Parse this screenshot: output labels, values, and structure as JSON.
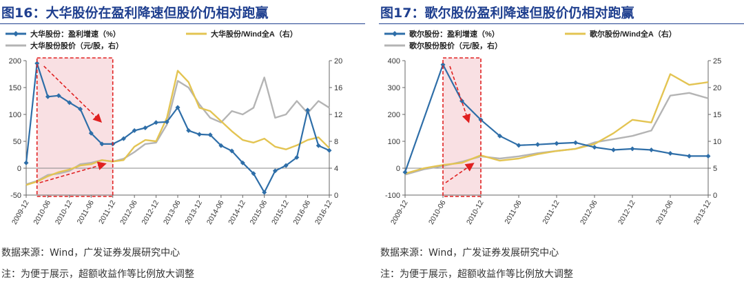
{
  "charts": [
    {
      "title": "图16：大华股份在盈利降速但股价仍相对跑赢",
      "source": "数据来源：Wind，广发证券发展研究中心",
      "note": "注：为便于展示，超额收益作等比例放大调整",
      "legend": [
        "大华股份：盈利增速（%）",
        "大华股份/Wind全A（右）",
        "大华股份股价（元/股，右）"
      ],
      "colors": {
        "growth": "#2e6ea8",
        "relative": "#e3c452",
        "price": "#b4b4b4",
        "highlight": "#f7d6d9",
        "box": "#e02020"
      }
    },
    {
      "title": "图17：歌尔股份盈利降速但股价仍相对跑赢",
      "source": "数据来源：Wind，广发证券发展研究中心",
      "note": "注：为便于展示，超额收益作等比例放大调整",
      "legend": [
        "歌尔股份：盈利增速（%）",
        "歌尔股份/Wind全A（右）",
        "歌尔股份股价（元/股，右）"
      ],
      "colors": {
        "growth": "#2e6ea8",
        "relative": "#e3c452",
        "price": "#b4b4b4",
        "highlight": "#f7d6d9",
        "box": "#e02020"
      }
    }
  ],
  "chart_data": [
    {
      "type": "line",
      "title": "大华股份在盈利降速但股价仍相对跑赢",
      "x_ticks": [
        "2009-12",
        "2010-06",
        "2010-12",
        "2011-06",
        "2011-12",
        "2012-06",
        "2012-12",
        "2013-06",
        "2013-12",
        "2014-06",
        "2014-12",
        "2015-06",
        "2015-12",
        "2016-06",
        "2016-12"
      ],
      "xlim": [
        "2009-12",
        "2016-12"
      ],
      "ylim_left": [
        -50,
        200
      ],
      "yticks_left": [
        "-50",
        "0",
        "50",
        "100",
        "150",
        "200"
      ],
      "ylim_right": [
        0,
        20
      ],
      "yticks_right": [
        "0",
        "4",
        "8",
        "12",
        "16",
        "20"
      ],
      "highlight_range": [
        "2010-03",
        "2011-12"
      ],
      "series": [
        {
          "name": "大华股份：盈利增速（%）",
          "axis": "left",
          "style": "line-marker",
          "x": [
            "2009-12",
            "2010-03",
            "2010-06",
            "2010-09",
            "2010-12",
            "2011-03",
            "2011-06",
            "2011-09",
            "2011-12",
            "2012-03",
            "2012-06",
            "2012-09",
            "2012-12",
            "2013-03",
            "2013-06",
            "2013-09",
            "2013-12",
            "2014-03",
            "2014-06",
            "2014-09",
            "2014-12",
            "2015-03",
            "2015-06",
            "2015-09",
            "2015-12",
            "2016-03",
            "2016-06",
            "2016-09",
            "2016-12"
          ],
          "y": [
            10,
            195,
            133,
            135,
            122,
            110,
            65,
            45,
            45,
            55,
            70,
            75,
            85,
            86,
            113,
            70,
            63,
            62,
            42,
            32,
            10,
            -10,
            -45,
            -5,
            5,
            20,
            108,
            42,
            33
          ]
        },
        {
          "name": "大华股份/Wind全A（右）",
          "axis": "right",
          "x": [
            "2009-12",
            "2010-03",
            "2010-06",
            "2010-09",
            "2010-12",
            "2011-03",
            "2011-06",
            "2011-09",
            "2011-12",
            "2012-03",
            "2012-06",
            "2012-09",
            "2012-12",
            "2013-03",
            "2013-06",
            "2013-09",
            "2013-12",
            "2014-03",
            "2014-06",
            "2014-09",
            "2014-12",
            "2015-03",
            "2015-06",
            "2015-09",
            "2015-12",
            "2016-03",
            "2016-06",
            "2016-09",
            "2016-12"
          ],
          "y": [
            1.5,
            2.0,
            2.8,
            3.4,
            3.8,
            4.4,
            4.6,
            5.2,
            5.0,
            5.2,
            7.2,
            8.2,
            8.0,
            11.5,
            18.5,
            16.8,
            13.0,
            12.5,
            11.0,
            9.5,
            8.2,
            7.8,
            8.4,
            7.2,
            6.8,
            7.4,
            8.2,
            8.6,
            7.0
          ]
        },
        {
          "name": "大华股份股价（元/股，右）",
          "axis": "right",
          "x": [
            "2009-12",
            "2010-03",
            "2010-06",
            "2010-09",
            "2010-12",
            "2011-03",
            "2011-06",
            "2011-09",
            "2011-12",
            "2012-03",
            "2012-06",
            "2012-09",
            "2012-12",
            "2013-03",
            "2013-06",
            "2013-09",
            "2013-12",
            "2014-03",
            "2014-06",
            "2014-09",
            "2014-12",
            "2015-03",
            "2015-06",
            "2015-09",
            "2015-12",
            "2016-03",
            "2016-06",
            "2016-09",
            "2016-12"
          ],
          "y": [
            1.6,
            2.1,
            3.0,
            3.2,
            3.6,
            4.6,
            4.8,
            5.2,
            5.0,
            5.4,
            6.4,
            7.6,
            7.8,
            10.5,
            17.0,
            16.0,
            13.5,
            11.5,
            10.8,
            12.5,
            12.0,
            13.0,
            17.5,
            11.5,
            12.0,
            14.0,
            12.2,
            14.0,
            13.0
          ]
        }
      ]
    },
    {
      "type": "line",
      "title": "歌尔股份盈利降速但股价仍相对跑赢",
      "x_ticks": [
        "2009-12",
        "2010-06",
        "2010-12",
        "2011-06",
        "2011-12",
        "2012-06",
        "2012-12",
        "2013-06",
        "2013-12"
      ],
      "xlim": [
        "2009-12",
        "2013-12"
      ],
      "ylim_left": [
        -100,
        400
      ],
      "yticks_left": [
        "-100",
        "0",
        "100",
        "200",
        "300",
        "400"
      ],
      "ylim_right": [
        0,
        25
      ],
      "yticks_right": [
        "0",
        "5",
        "10",
        "15",
        "20",
        "25"
      ],
      "highlight_range": [
        "2010-06",
        "2010-12"
      ],
      "series": [
        {
          "name": "歌尔股份：盈利增速（%）",
          "axis": "left",
          "style": "line-marker",
          "x": [
            "2009-12",
            "2010-06",
            "2010-09",
            "2010-12",
            "2011-03",
            "2011-06",
            "2011-09",
            "2011-12",
            "2012-03",
            "2012-06",
            "2012-09",
            "2012-12",
            "2013-03",
            "2013-06",
            "2013-09",
            "2013-12"
          ],
          "y": [
            -15,
            385,
            250,
            180,
            120,
            85,
            88,
            92,
            95,
            78,
            68,
            72,
            68,
            55,
            45,
            45
          ]
        },
        {
          "name": "歌尔股份/Wind全A（右）",
          "axis": "right",
          "x": [
            "2009-12",
            "2010-03",
            "2010-06",
            "2010-09",
            "2010-12",
            "2011-03",
            "2011-06",
            "2011-09",
            "2011-12",
            "2012-03",
            "2012-06",
            "2012-09",
            "2012-12",
            "2013-03",
            "2013-06",
            "2013-09",
            "2013-12"
          ],
          "y": [
            4.0,
            5.0,
            5.6,
            6.0,
            7.4,
            6.4,
            6.8,
            7.6,
            8.2,
            8.6,
            9.5,
            11.5,
            14.0,
            13.5,
            22.5,
            20.5,
            21.0
          ]
        },
        {
          "name": "歌尔股份股价（元/股，右）",
          "axis": "right",
          "x": [
            "2009-12",
            "2010-03",
            "2010-06",
            "2010-09",
            "2010-12",
            "2011-03",
            "2011-06",
            "2011-09",
            "2011-12",
            "2012-03",
            "2012-06",
            "2012-09",
            "2012-12",
            "2013-03",
            "2013-06",
            "2013-09",
            "2013-12"
          ],
          "y": [
            3.8,
            4.8,
            5.4,
            6.2,
            7.2,
            6.8,
            7.2,
            7.8,
            8.2,
            8.6,
            9.8,
            10.4,
            11.0,
            12.0,
            18.5,
            19.0,
            18.0
          ]
        }
      ]
    }
  ]
}
